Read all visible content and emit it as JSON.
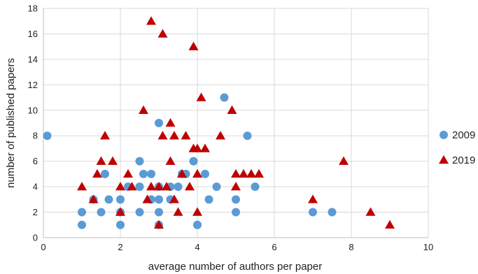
{
  "chart_data": {
    "type": "scatter",
    "title": "",
    "xlabel": "average number of authors per paper",
    "ylabel": "number of published papers",
    "xlim": [
      0,
      10
    ],
    "ylim": [
      0,
      18
    ],
    "xticks": [
      0,
      2,
      4,
      6,
      8,
      10
    ],
    "yticks": [
      0,
      2,
      4,
      6,
      8,
      10,
      12,
      14,
      16,
      18
    ],
    "grid": true,
    "legend_position": "right",
    "series": [
      {
        "name": "2009",
        "marker": "circle",
        "color": "#5b9bd5",
        "points": [
          [
            0.1,
            8
          ],
          [
            1.0,
            2
          ],
          [
            1.0,
            1
          ],
          [
            1.3,
            3
          ],
          [
            1.5,
            2
          ],
          [
            1.6,
            5
          ],
          [
            1.7,
            3
          ],
          [
            2.0,
            3
          ],
          [
            2.0,
            2
          ],
          [
            2.0,
            1
          ],
          [
            2.2,
            4
          ],
          [
            2.5,
            6
          ],
          [
            2.5,
            4
          ],
          [
            2.5,
            2
          ],
          [
            2.6,
            5
          ],
          [
            2.8,
            5
          ],
          [
            2.8,
            3
          ],
          [
            3.0,
            9
          ],
          [
            3.0,
            4
          ],
          [
            3.0,
            3
          ],
          [
            3.0,
            2
          ],
          [
            3.0,
            1
          ],
          [
            3.3,
            4
          ],
          [
            3.3,
            3
          ],
          [
            3.5,
            4
          ],
          [
            3.6,
            5
          ],
          [
            3.7,
            5
          ],
          [
            3.9,
            6
          ],
          [
            4.0,
            1
          ],
          [
            4.0,
            1
          ],
          [
            4.2,
            5
          ],
          [
            4.3,
            3
          ],
          [
            4.5,
            4
          ],
          [
            4.7,
            11
          ],
          [
            5.0,
            3
          ],
          [
            5.0,
            2
          ],
          [
            5.3,
            8
          ],
          [
            5.5,
            4
          ],
          [
            7.0,
            2
          ],
          [
            7.5,
            2
          ]
        ]
      },
      {
        "name": "2019",
        "marker": "triangle",
        "color": "#c00000",
        "points": [
          [
            1.0,
            4
          ],
          [
            1.3,
            3
          ],
          [
            1.4,
            5
          ],
          [
            1.5,
            6
          ],
          [
            1.6,
            8
          ],
          [
            1.8,
            6
          ],
          [
            2.0,
            4
          ],
          [
            2.0,
            2
          ],
          [
            2.2,
            5
          ],
          [
            2.3,
            4
          ],
          [
            2.6,
            10
          ],
          [
            2.7,
            3
          ],
          [
            2.8,
            4
          ],
          [
            2.8,
            17
          ],
          [
            3.0,
            1
          ],
          [
            3.0,
            4
          ],
          [
            3.1,
            8
          ],
          [
            3.1,
            16
          ],
          [
            3.2,
            4
          ],
          [
            3.3,
            9
          ],
          [
            3.3,
            6
          ],
          [
            3.4,
            8
          ],
          [
            3.4,
            3
          ],
          [
            3.5,
            2
          ],
          [
            3.6,
            5
          ],
          [
            3.7,
            8
          ],
          [
            3.8,
            4
          ],
          [
            3.9,
            7
          ],
          [
            3.9,
            15
          ],
          [
            4.0,
            7
          ],
          [
            4.0,
            5
          ],
          [
            4.0,
            2
          ],
          [
            4.1,
            11
          ],
          [
            4.2,
            7
          ],
          [
            4.6,
            8
          ],
          [
            4.9,
            10
          ],
          [
            5.0,
            5
          ],
          [
            5.0,
            4
          ],
          [
            5.2,
            5
          ],
          [
            5.4,
            5
          ],
          [
            5.6,
            5
          ],
          [
            7.0,
            3
          ],
          [
            7.8,
            6
          ],
          [
            8.5,
            2
          ],
          [
            9.0,
            1
          ]
        ]
      }
    ]
  }
}
